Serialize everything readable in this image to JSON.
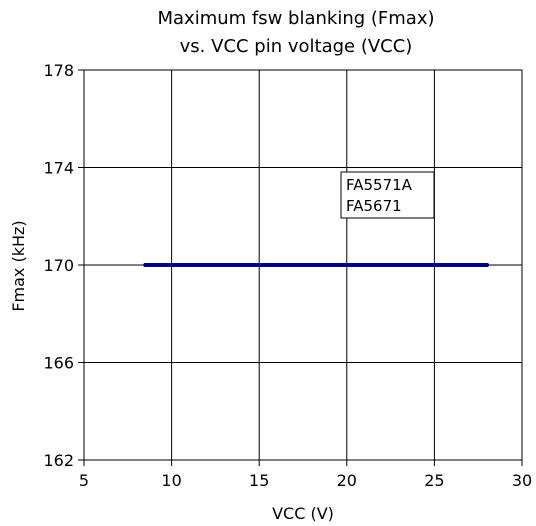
{
  "chart_data": {
    "type": "line",
    "title_line1": "Maximum fsw blanking (Fmax)",
    "title_line2": "vs. VCC pin voltage (VCC)",
    "xlabel": "VCC (V)",
    "ylabel": "Fmax (kHz)",
    "xlim": [
      5,
      30
    ],
    "ylim": [
      162,
      178
    ],
    "xticks": [
      5,
      10,
      15,
      20,
      25,
      30
    ],
    "yticks": [
      162,
      166,
      170,
      174,
      178
    ],
    "grid": true,
    "legend": {
      "line1": "FA5571A",
      "line2": "FA5671",
      "placement": "center-right"
    },
    "series": [
      {
        "x": [
          8.5,
          10,
          12,
          14,
          16,
          18,
          20,
          22,
          24,
          26,
          28
        ],
        "y": [
          170,
          170,
          170,
          170,
          170,
          170,
          170,
          170,
          170,
          170,
          170
        ],
        "color": "#000080"
      }
    ]
  }
}
